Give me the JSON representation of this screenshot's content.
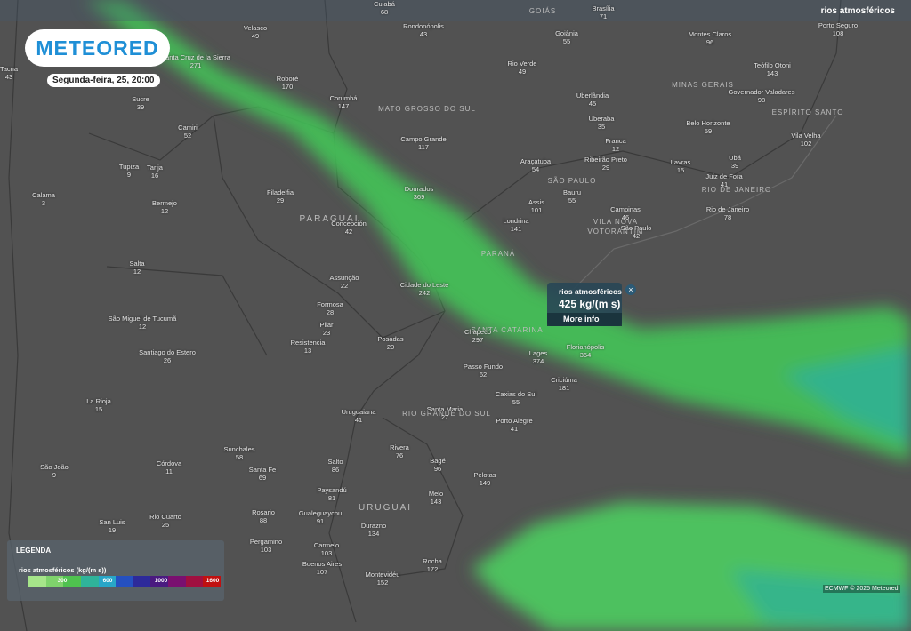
{
  "header": {
    "logo": "METEORED",
    "date": "Segunda-feira, 25, 20:00",
    "layer": "rios atmosféricos"
  },
  "popup": {
    "title": "rios atmosféricos",
    "value": "425 kg/(m s)",
    "link": "More info"
  },
  "legend": {
    "title": "LEGENDA",
    "unit": "rios atmosféricos (kg/(m s))",
    "ticks": [
      "300",
      "600",
      "1000",
      "1600"
    ]
  },
  "credit": "ECMWF © 2025 Meteored",
  "regions": [
    "GOIÁS",
    "MATO GROSSO DO SUL",
    "MINAS GERAIS",
    "ESPÍRITO SANTO",
    "SÃO PAULO",
    "RIO DE JANEIRO",
    "PARAGUAI",
    "PARANÁ",
    "SANTA CATARINA",
    "RIO GRANDE DO SUL",
    "URUGUAI",
    "VILA NOVA",
    "VOTORANTIM"
  ],
  "cities": [
    {
      "name": "Cuiabá",
      "value": 68
    },
    {
      "name": "Brasília",
      "value": 71
    },
    {
      "name": "Velasco",
      "value": 49
    },
    {
      "name": "Rondonópolis",
      "value": 43
    },
    {
      "name": "Goiânia",
      "value": 55
    },
    {
      "name": "Montes Claros",
      "value": 96
    },
    {
      "name": "Porto Seguro",
      "value": 108
    },
    {
      "name": "Santa Cruz de la Sierra",
      "value": 271
    },
    {
      "name": "Roboré",
      "value": 170
    },
    {
      "name": "Rio Verde",
      "value": 49
    },
    {
      "name": "Teófilo Otoni",
      "value": 143
    },
    {
      "name": "Tacna",
      "value": 43
    },
    {
      "name": "Sucre",
      "value": 39
    },
    {
      "name": "Corumbá",
      "value": 147
    },
    {
      "name": "Uberlândia",
      "value": 45
    },
    {
      "name": "Governador Valadares",
      "value": 98
    },
    {
      "name": "Camiri",
      "value": 52
    },
    {
      "name": "Uberaba",
      "value": 35
    },
    {
      "name": "Belo Horizonte",
      "value": 59
    },
    {
      "name": "Campo Grande",
      "value": 117
    },
    {
      "name": "Vila Velha",
      "value": 102
    },
    {
      "name": "Franca",
      "value": 12
    },
    {
      "name": "Tupiza",
      "value": 9
    },
    {
      "name": "Tarija",
      "value": 16
    },
    {
      "name": "Araçatuba",
      "value": 54
    },
    {
      "name": "Ribeirão Preto",
      "value": 29
    },
    {
      "name": "Lavras",
      "value": 15
    },
    {
      "name": "Ubá",
      "value": 39
    },
    {
      "name": "Juiz de Fora",
      "value": 41
    },
    {
      "name": "Dourados",
      "value": 369
    },
    {
      "name": "Filadelfia",
      "value": 29
    },
    {
      "name": "Calama",
      "value": 3
    },
    {
      "name": "Bermejo",
      "value": 12
    },
    {
      "name": "Assis",
      "value": 101
    },
    {
      "name": "Bauru",
      "value": 55
    },
    {
      "name": "Campinas",
      "value": 46
    },
    {
      "name": "Rio de Janeiro",
      "value": 78
    },
    {
      "name": "Londrina",
      "value": 141
    },
    {
      "name": "Concepción",
      "value": 42
    },
    {
      "name": "São Paulo",
      "value": 42
    },
    {
      "name": "Salta",
      "value": 12
    },
    {
      "name": "Assunção",
      "value": 22
    },
    {
      "name": "Cidade do Leste",
      "value": 242
    },
    {
      "name": "Formosa",
      "value": 28
    },
    {
      "name": "São Miguel de Tucumã",
      "value": 12
    },
    {
      "name": "Pilar",
      "value": 23
    },
    {
      "name": "Resistencia",
      "value": 13
    },
    {
      "name": "Posadas",
      "value": 20
    },
    {
      "name": "Chapecó",
      "value": 297
    },
    {
      "name": "Florianópolis",
      "value": 364
    },
    {
      "name": "Lages",
      "value": 374
    },
    {
      "name": "Santiago do Estero",
      "value": 26
    },
    {
      "name": "Passo Fundo",
      "value": 62
    },
    {
      "name": "Criciúma",
      "value": 181
    },
    {
      "name": "Caxias do Sul",
      "value": 55
    },
    {
      "name": "La Rioja",
      "value": 15
    },
    {
      "name": "Uruguaiana",
      "value": 41
    },
    {
      "name": "Santa Maria",
      "value": 27
    },
    {
      "name": "Porto Alegre",
      "value": 41
    },
    {
      "name": "Rivera",
      "value": 76
    },
    {
      "name": "Sunchales",
      "value": 58
    },
    {
      "name": "Bagé",
      "value": 96
    },
    {
      "name": "Salto",
      "value": 86
    },
    {
      "name": "Córdova",
      "value": 11
    },
    {
      "name": "Santa Fe",
      "value": 69
    },
    {
      "name": "São João",
      "value": 9
    },
    {
      "name": "Pelotas",
      "value": 149
    },
    {
      "name": "Paysandú",
      "value": 81
    },
    {
      "name": "Melo",
      "value": 143
    },
    {
      "name": "Rosario",
      "value": 88
    },
    {
      "name": "Gualeguaychu",
      "value": 91
    },
    {
      "name": "Rio Cuarto",
      "value": 25
    },
    {
      "name": "San Luis",
      "value": 19
    },
    {
      "name": "Durazno",
      "value": 134
    },
    {
      "name": "Pergamino",
      "value": 103
    },
    {
      "name": "Carmelo",
      "value": 103
    },
    {
      "name": "Buenos Aires",
      "value": 107
    },
    {
      "name": "Rocha",
      "value": 172
    },
    {
      "name": "Montevidéu",
      "value": 152
    }
  ]
}
